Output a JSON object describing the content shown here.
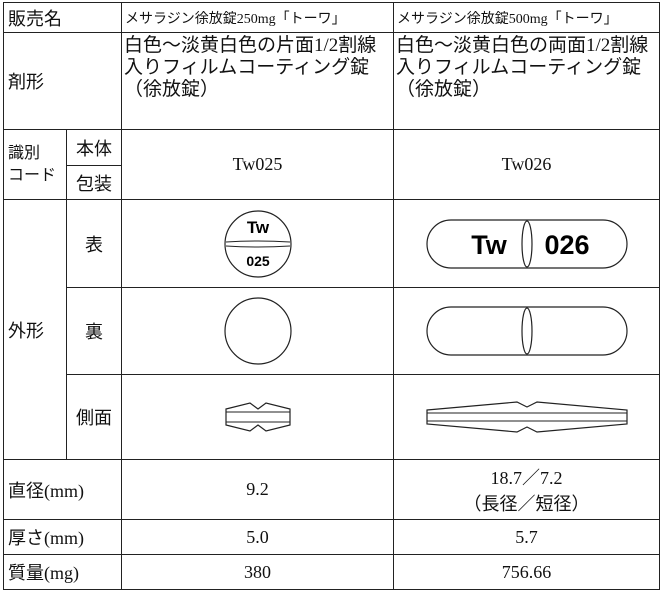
{
  "table": {
    "header": {
      "label": "販売名",
      "products": [
        "メサラジン徐放錠250mg「トーワ」",
        "メサラジン徐放錠500mg「トーワ」"
      ]
    },
    "dosage_form": {
      "label": "剤形",
      "values": [
        "白色～淡黄白色の片面1/2割線入りフィルムコーティング錠（徐放錠）",
        "白色～淡黄白色の両面1/2割線入りフィルムコーティング錠（徐放錠）"
      ]
    },
    "identification": {
      "label": [
        "識別",
        "コード"
      ],
      "sub_labels": [
        "本体",
        "包装"
      ],
      "values": [
        "Tw025",
        "Tw026"
      ]
    },
    "appearance": {
      "label": "外形",
      "views": [
        "表",
        "裏",
        "側面"
      ],
      "imprints": [
        [
          "Tw",
          "025"
        ],
        [
          "Tw",
          "026"
        ]
      ]
    },
    "diameter": {
      "label": "直径(mm)",
      "values": [
        "9.2",
        "18.7／7.2"
      ],
      "note": "（長径／短径）"
    },
    "thickness": {
      "label": "厚さ(mm)",
      "values": [
        "5.0",
        "5.7"
      ]
    },
    "mass": {
      "label": "質量(mg)",
      "values": [
        "380",
        "756.66"
      ]
    }
  }
}
